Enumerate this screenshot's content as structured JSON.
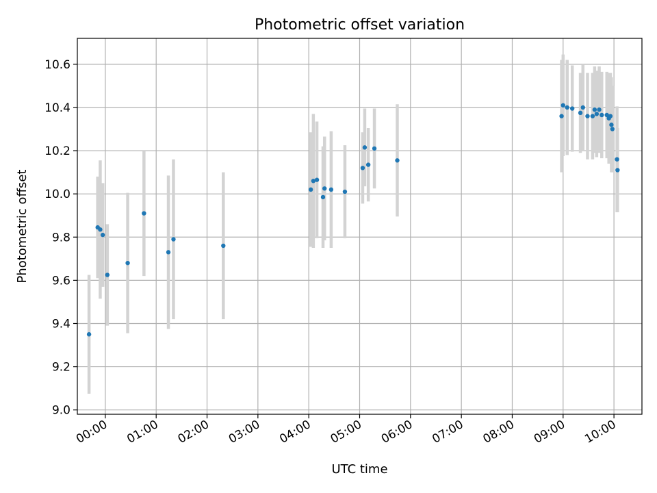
{
  "chart_data": {
    "type": "scatter",
    "title": "Photometric offset variation",
    "xlabel": "UTC time",
    "ylabel": "Photometric offset",
    "xlim": [
      -0.55,
      10.55
    ],
    "ylim": [
      8.98,
      10.72
    ],
    "grid": true,
    "x_ticks": [
      {
        "value": 0,
        "label": "00:00"
      },
      {
        "value": 1,
        "label": "01:00"
      },
      {
        "value": 2,
        "label": "02:00"
      },
      {
        "value": 3,
        "label": "03:00"
      },
      {
        "value": 4,
        "label": "04:00"
      },
      {
        "value": 5,
        "label": "05:00"
      },
      {
        "value": 6,
        "label": "06:00"
      },
      {
        "value": 7,
        "label": "07:00"
      },
      {
        "value": 8,
        "label": "08:00"
      },
      {
        "value": 9,
        "label": "09:00"
      },
      {
        "value": 10,
        "label": "10:00"
      }
    ],
    "y_ticks": [
      {
        "value": 9.0,
        "label": "9.0"
      },
      {
        "value": 9.2,
        "label": "9.2"
      },
      {
        "value": 9.4,
        "label": "9.4"
      },
      {
        "value": 9.6,
        "label": "9.6"
      },
      {
        "value": 9.8,
        "label": "9.8"
      },
      {
        "value": 10.0,
        "label": "10.0"
      },
      {
        "value": 10.2,
        "label": "10.2"
      },
      {
        "value": 10.4,
        "label": "10.4"
      },
      {
        "value": 10.6,
        "label": "10.6"
      }
    ],
    "point_color": "#1f77b4",
    "errorbar_color": "#d3d3d3",
    "points": [
      {
        "x": -0.32,
        "y": 9.35,
        "err": 0.275
      },
      {
        "x": -0.15,
        "y": 9.845,
        "err": 0.235
      },
      {
        "x": -0.1,
        "y": 9.835,
        "err": 0.32
      },
      {
        "x": -0.05,
        "y": 9.81,
        "err": 0.24
      },
      {
        "x": 0.04,
        "y": 9.625,
        "err": 0.235
      },
      {
        "x": 0.44,
        "y": 9.68,
        "err": 0.325
      },
      {
        "x": 0.76,
        "y": 9.91,
        "err": 0.29
      },
      {
        "x": 1.24,
        "y": 9.73,
        "err": 0.355
      },
      {
        "x": 1.34,
        "y": 9.79,
        "err": 0.37
      },
      {
        "x": 2.32,
        "y": 9.76,
        "err": 0.34
      },
      {
        "x": 4.04,
        "y": 10.02,
        "err": 0.265
      },
      {
        "x": 4.09,
        "y": 10.06,
        "err": 0.31
      },
      {
        "x": 4.16,
        "y": 10.065,
        "err": 0.27
      },
      {
        "x": 4.28,
        "y": 9.985,
        "err": 0.235
      },
      {
        "x": 4.31,
        "y": 10.025,
        "err": 0.24
      },
      {
        "x": 4.44,
        "y": 10.02,
        "err": 0.27
      },
      {
        "x": 4.71,
        "y": 10.01,
        "err": 0.215
      },
      {
        "x": 5.06,
        "y": 10.12,
        "err": 0.165
      },
      {
        "x": 5.1,
        "y": 10.215,
        "err": 0.18
      },
      {
        "x": 5.17,
        "y": 10.135,
        "err": 0.17
      },
      {
        "x": 5.29,
        "y": 10.21,
        "err": 0.185
      },
      {
        "x": 5.74,
        "y": 10.155,
        "err": 0.26
      },
      {
        "x": 8.97,
        "y": 10.36,
        "err": 0.26
      },
      {
        "x": 9.0,
        "y": 10.41,
        "err": 0.235
      },
      {
        "x": 9.08,
        "y": 10.4,
        "err": 0.22
      },
      {
        "x": 9.18,
        "y": 10.395,
        "err": 0.2
      },
      {
        "x": 9.34,
        "y": 10.375,
        "err": 0.185
      },
      {
        "x": 9.39,
        "y": 10.4,
        "err": 0.2
      },
      {
        "x": 9.48,
        "y": 10.36,
        "err": 0.2
      },
      {
        "x": 9.58,
        "y": 10.36,
        "err": 0.2
      },
      {
        "x": 9.62,
        "y": 10.39,
        "err": 0.2
      },
      {
        "x": 9.66,
        "y": 10.37,
        "err": 0.2
      },
      {
        "x": 9.71,
        "y": 10.39,
        "err": 0.2
      },
      {
        "x": 9.76,
        "y": 10.365,
        "err": 0.2
      },
      {
        "x": 9.86,
        "y": 10.365,
        "err": 0.2
      },
      {
        "x": 9.9,
        "y": 10.35,
        "err": 0.21
      },
      {
        "x": 9.93,
        "y": 10.36,
        "err": 0.2
      },
      {
        "x": 9.95,
        "y": 10.32,
        "err": 0.22
      },
      {
        "x": 9.97,
        "y": 10.3,
        "err": 0.2
      },
      {
        "x": 10.06,
        "y": 10.16,
        "err": 0.245
      },
      {
        "x": 10.07,
        "y": 10.11,
        "err": 0.195
      }
    ]
  }
}
